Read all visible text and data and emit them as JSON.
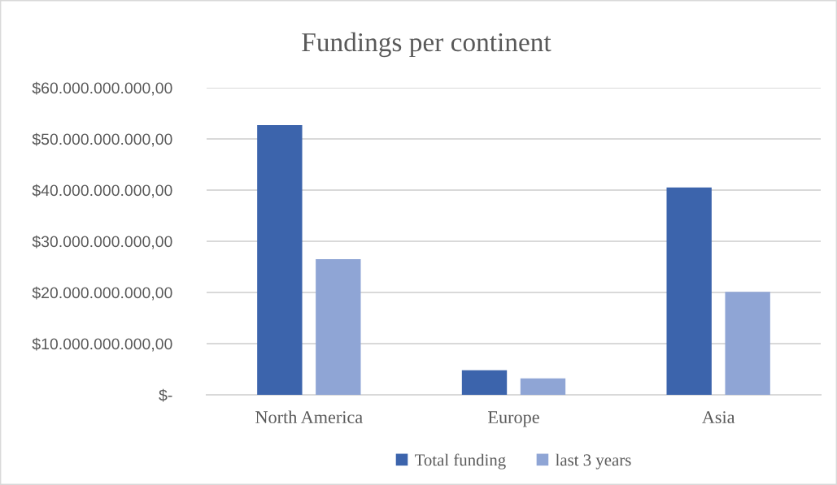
{
  "chart_data": {
    "type": "bar",
    "title": "Fundings per continent",
    "categories": [
      "North America",
      "Europe",
      "Asia"
    ],
    "series": [
      {
        "name": "Total funding",
        "color": "#3c64ac",
        "values": [
          52700000000,
          4800000000,
          40500000000
        ]
      },
      {
        "name": "last 3 years",
        "color": "#8fa5d5",
        "values": [
          26500000000,
          3200000000,
          20100000000
        ]
      }
    ],
    "ylim": [
      0,
      60000000000
    ],
    "yticks": [
      {
        "value": 0,
        "label": "$-"
      },
      {
        "value": 10000000000,
        "label": "$10.000.000.000,00"
      },
      {
        "value": 20000000000,
        "label": "$20.000.000.000,00"
      },
      {
        "value": 30000000000,
        "label": "$30.000.000.000,00"
      },
      {
        "value": 40000000000,
        "label": "$40.000.000.000,00"
      },
      {
        "value": 50000000000,
        "label": "$50.000.000.000,00"
      },
      {
        "value": 60000000000,
        "label": "$60.000.000.000,00"
      }
    ],
    "grid": "y",
    "legend": "bottom"
  }
}
